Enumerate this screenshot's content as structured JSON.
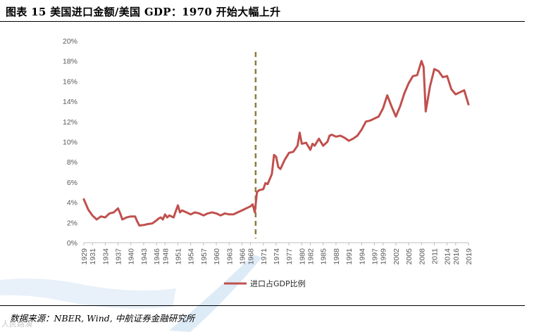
{
  "header": {
    "title": "图表 15 美国进口金额/美国 GDP：1970 开始大幅上升"
  },
  "footer": {
    "source": "数据来源：NBER, Wind, 中航证券金融研究所",
    "watermark": "人民路演"
  },
  "colors": {
    "series": "#c0504d",
    "marker_line": "#8c7b3e",
    "axis": "#bfbfbf",
    "watermark_swoosh": "#bdd7ee"
  },
  "chart_data": {
    "type": "line",
    "title": "",
    "xlabel": "",
    "ylabel": "",
    "ylim": [
      0,
      20
    ],
    "xlim": [
      1929,
      2019
    ],
    "yticks": [
      0,
      2,
      4,
      6,
      8,
      10,
      12,
      14,
      16,
      18,
      20
    ],
    "ytick_labels": [
      "0%",
      "2%",
      "4%",
      "6%",
      "8%",
      "10%",
      "12%",
      "14%",
      "16%",
      "18%",
      "20%"
    ],
    "xticks": [
      1929,
      1931,
      1934,
      1937,
      1940,
      1943,
      1946,
      1948,
      1951,
      1954,
      1957,
      1960,
      1963,
      1966,
      1968,
      1971,
      1974,
      1977,
      1980,
      1982,
      1985,
      1988,
      1991,
      1994,
      1997,
      1999,
      2002,
      2005,
      2008,
      2011,
      2014,
      2016,
      2019
    ],
    "grid": false,
    "legend_position": "bottom-center",
    "vertical_marker": {
      "x": 1969.2,
      "style": "dashed"
    },
    "series": [
      {
        "name": "进口占GDP比例",
        "x": [
          1929,
          1930,
          1931,
          1932,
          1933,
          1934,
          1935,
          1936,
          1937,
          1937.5,
          1938,
          1939,
          1940,
          1941,
          1941.5,
          1942,
          1943,
          1944,
          1945,
          1946,
          1946.5,
          1947,
          1947.5,
          1948,
          1948.5,
          1949,
          1950,
          1950.5,
          1951,
          1951.5,
          1952,
          1953,
          1954,
          1955,
          1956,
          1957,
          1958,
          1959,
          1960,
          1961,
          1962,
          1963,
          1964,
          1965,
          1966,
          1967,
          1968,
          1968.5,
          1969,
          1969.5,
          1970,
          1971,
          1971.5,
          1972,
          1973,
          1973.5,
          1974,
          1974.5,
          1975,
          1976,
          1977,
          1978,
          1979,
          1979.5,
          1980,
          1981,
          1982,
          1982.5,
          1983,
          1984,
          1985,
          1986,
          1986.5,
          1987,
          1988,
          1989,
          1990,
          1991,
          1992,
          1993,
          1994,
          1995,
          1996,
          1997,
          1998,
          1999,
          2000,
          2001,
          2002,
          2003,
          2004,
          2005,
          2006,
          2007,
          2008,
          2008.5,
          2009,
          2010,
          2011,
          2012,
          2013,
          2014,
          2015,
          2016,
          2017,
          2018,
          2019
        ],
        "values": [
          4.3,
          3.3,
          2.7,
          2.3,
          2.6,
          2.5,
          2.9,
          3.0,
          3.4,
          2.9,
          2.3,
          2.5,
          2.6,
          2.6,
          2.1,
          1.7,
          1.75,
          1.85,
          1.9,
          2.2,
          2.4,
          2.5,
          2.3,
          2.8,
          2.5,
          2.7,
          2.5,
          3.1,
          3.7,
          3.0,
          3.2,
          3.0,
          2.8,
          3.0,
          2.9,
          2.7,
          2.9,
          3.0,
          2.9,
          2.7,
          2.9,
          2.8,
          2.8,
          3.0,
          3.2,
          3.4,
          3.6,
          3.8,
          3.0,
          5.0,
          5.2,
          5.3,
          5.9,
          5.8,
          6.8,
          8.7,
          8.5,
          7.5,
          7.3,
          8.2,
          8.9,
          9.0,
          9.6,
          10.9,
          9.8,
          9.9,
          9.2,
          9.8,
          9.6,
          10.3,
          9.6,
          10.0,
          10.6,
          10.7,
          10.5,
          10.6,
          10.4,
          10.1,
          10.3,
          10.6,
          11.2,
          12.0,
          12.1,
          12.3,
          12.5,
          13.3,
          14.6,
          13.5,
          12.5,
          13.5,
          14.8,
          15.8,
          16.5,
          16.6,
          18.0,
          17.4,
          13.0,
          15.5,
          17.2,
          17.0,
          16.4,
          16.5,
          15.2,
          14.7,
          14.9,
          15.1,
          13.7
        ]
      }
    ]
  }
}
